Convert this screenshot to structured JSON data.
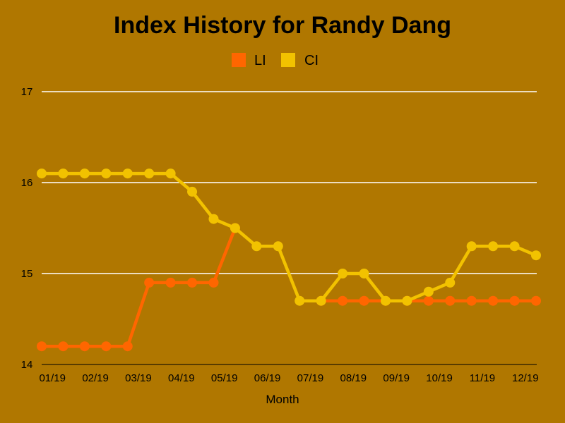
{
  "chart_data": {
    "type": "line",
    "title": "Index History for Randy Dang",
    "xlabel": "Month",
    "ylabel": "",
    "ylim": [
      14,
      17
    ],
    "yticks": [
      "14",
      "15",
      "16",
      "17"
    ],
    "x_tick_labels": [
      "01/19",
      "02/19",
      "03/19",
      "04/19",
      "05/19",
      "06/19",
      "07/19",
      "08/19",
      "09/19",
      "10/19",
      "11/19",
      "12/19"
    ],
    "point_count": 24,
    "grid": true,
    "legend_position": "top",
    "series": [
      {
        "name": "LI",
        "color": "#ff6600",
        "values": [
          14.2,
          14.2,
          14.2,
          14.2,
          14.2,
          14.9,
          14.9,
          14.9,
          14.9,
          15.5,
          null,
          null,
          null,
          14.7,
          14.7,
          14.7,
          14.7,
          14.7,
          14.7,
          14.7,
          14.7,
          14.7,
          14.7,
          14.7
        ]
      },
      {
        "name": "CI",
        "color": "#f2c200",
        "values": [
          16.1,
          16.1,
          16.1,
          16.1,
          16.1,
          16.1,
          16.1,
          15.9,
          15.6,
          15.5,
          15.3,
          15.3,
          14.7,
          14.7,
          15.0,
          15.0,
          14.7,
          14.7,
          14.8,
          14.9,
          15.3,
          15.3,
          15.3,
          15.2
        ]
      }
    ]
  }
}
